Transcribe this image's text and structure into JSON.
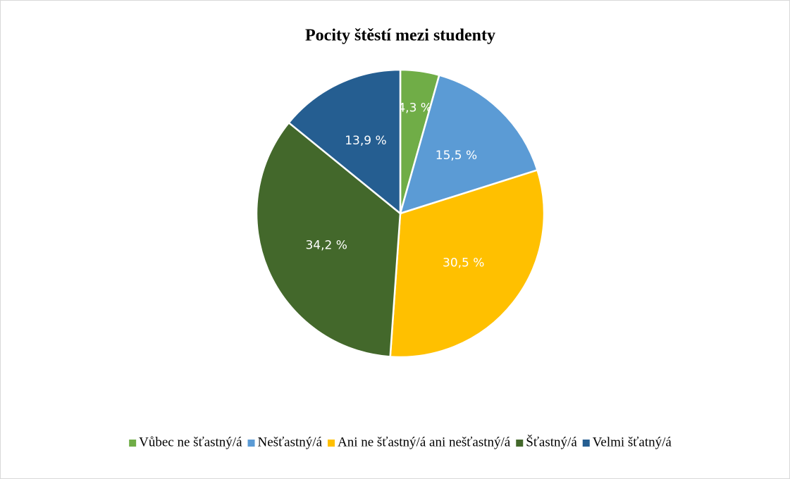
{
  "chart_data": {
    "type": "pie",
    "title": "Pocity štěstí mezi studenty",
    "categories": [
      "Vůbec ne šťastný/á",
      "Nešťastný/á",
      "Ani ne šťastný/á ani nešťastný/á",
      "Šťastný/á",
      "Velmi šťatný/á"
    ],
    "values": [
      4.3,
      15.5,
      30.5,
      34.2,
      13.9
    ],
    "value_labels": [
      "4,3 %",
      "15,5 %",
      "30,5 %",
      "34,2 %",
      "13,9 %"
    ],
    "colors": [
      "#70ad47",
      "#5b9bd5",
      "#ffc000",
      "#43682b",
      "#255e91"
    ],
    "legend": "bottom"
  }
}
